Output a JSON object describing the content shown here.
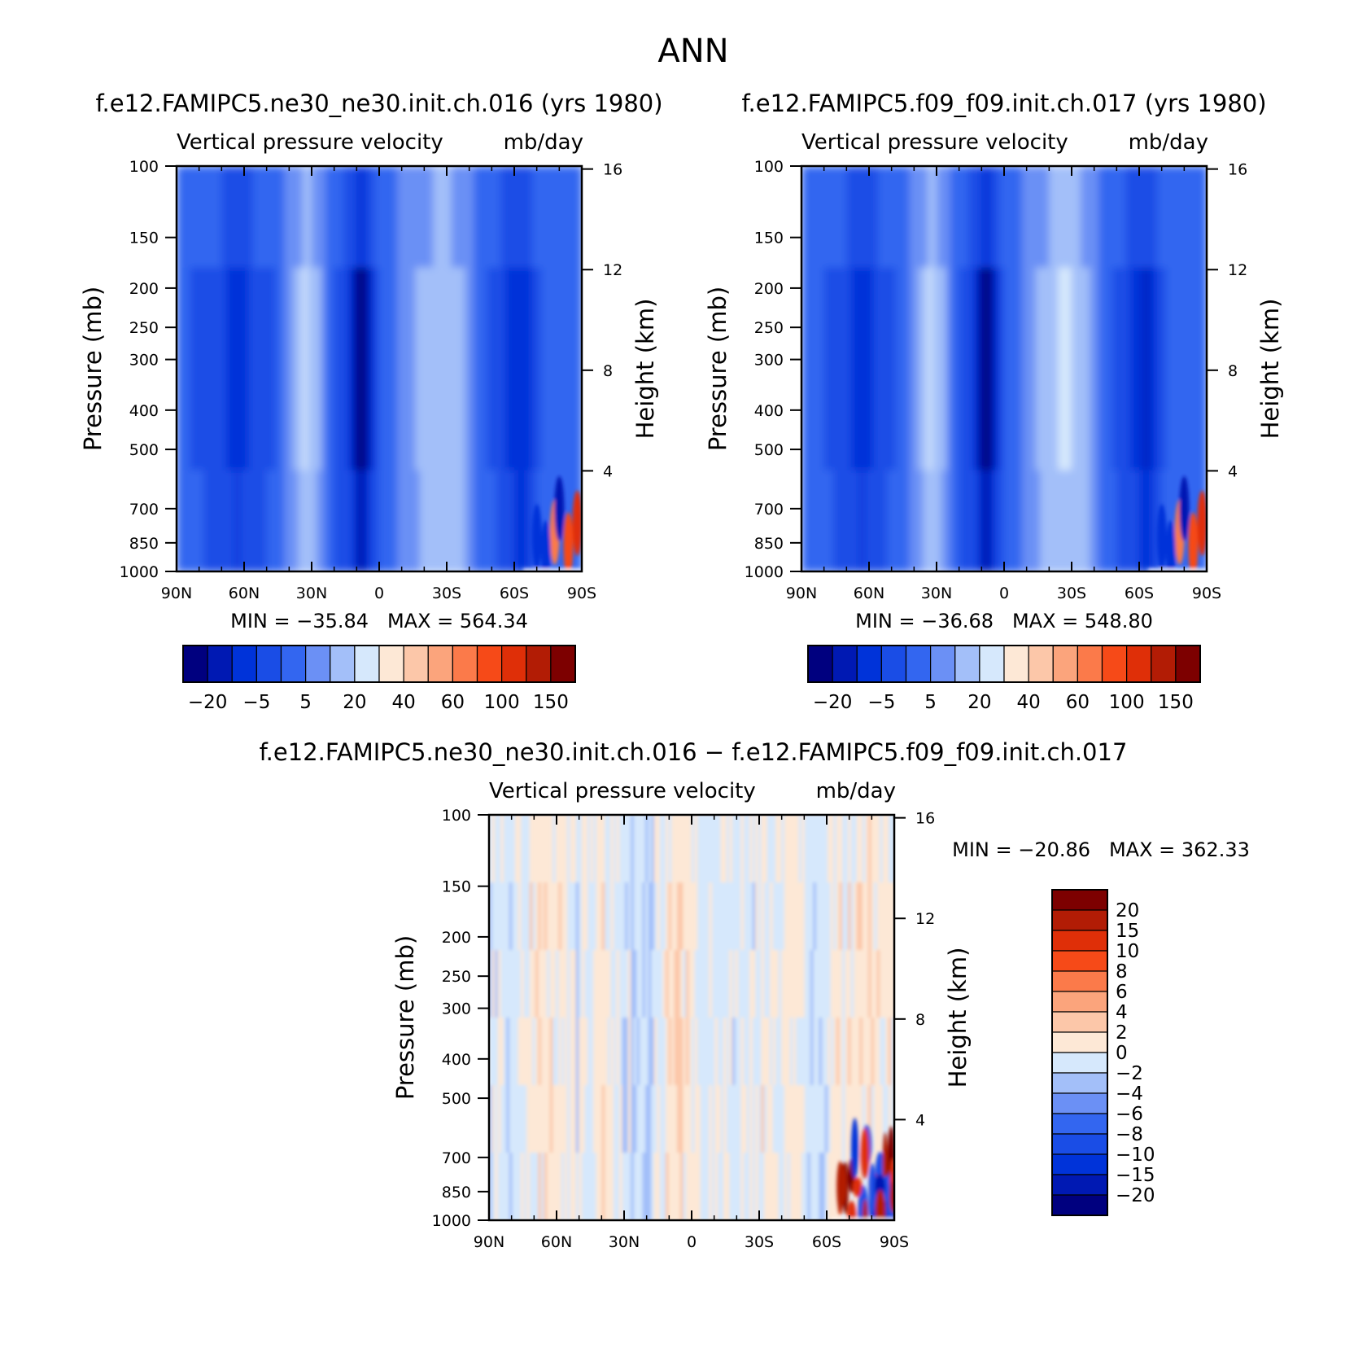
{
  "figure": {
    "title": "ANN"
  },
  "colors": {
    "abs_levels": [
      "#00007f",
      "#0019b3",
      "#0033d9",
      "#1a4de6",
      "#3366f0",
      "#6b90f5",
      "#a3bff9",
      "#d6e8fc",
      "#fde8d6",
      "#fcc7a9",
      "#fba47c",
      "#fb7a4a",
      "#f64a18",
      "#df2f08",
      "#b21c05",
      "#7d0000"
    ],
    "diff_levels": [
      "#00007f",
      "#0019b3",
      "#0033d9",
      "#1a4de6",
      "#3366f0",
      "#6b90f5",
      "#a3bff9",
      "#d6e8fc",
      "#fde8d6",
      "#fcc7a9",
      "#fba47c",
      "#fb7a4a",
      "#f64a18",
      "#df2f08",
      "#b21c05",
      "#7d0000"
    ]
  },
  "chart_data": [
    {
      "type": "heatmap",
      "title": "f.e12.FAMIPC5.ne30_ne30.init.ch.016 (yrs 1980)",
      "subtitle_left": "Vertical pressure velocity",
      "subtitle_right": "mb/day",
      "ylabel": "Pressure (mb)",
      "y2label": "Height (km)",
      "x_ticks": [
        "90N",
        "60N",
        "30N",
        "0",
        "30S",
        "60S",
        "90S"
      ],
      "y_ticks": [
        "100",
        "150",
        "200",
        "250",
        "300",
        "400",
        "500",
        "700",
        "850",
        "1000"
      ],
      "y2_ticks": [
        "16",
        "12",
        "8",
        "4"
      ],
      "xlim": [
        90,
        -90
      ],
      "ylim": [
        1000,
        100
      ],
      "stats": "MIN = −35.84   MAX = 564.34",
      "colorbar_labels": [
        "−20",
        "−5",
        "5",
        "20",
        "40",
        "60",
        "100",
        "150"
      ],
      "profile": [
        [
          90,
          -4
        ],
        [
          80,
          -6
        ],
        [
          70,
          -9
        ],
        [
          62,
          -14
        ],
        [
          55,
          -8
        ],
        [
          45,
          -5
        ],
        [
          38,
          4
        ],
        [
          33,
          10
        ],
        [
          28,
          8
        ],
        [
          20,
          -6
        ],
        [
          12,
          -12
        ],
        [
          8,
          -28
        ],
        [
          4,
          -14
        ],
        [
          0,
          -5
        ],
        [
          -5,
          -2
        ],
        [
          -12,
          3
        ],
        [
          -20,
          8
        ],
        [
          -28,
          10
        ],
        [
          -36,
          8
        ],
        [
          -44,
          -2
        ],
        [
          -52,
          -7
        ],
        [
          -58,
          -12
        ],
        [
          -64,
          -15
        ],
        [
          -70,
          -6
        ],
        [
          -76,
          -2
        ],
        [
          -82,
          0
        ],
        [
          -86,
          -3
        ],
        [
          -90,
          -5
        ]
      ]
    },
    {
      "type": "heatmap",
      "title": "f.e12.FAMIPC5.f09_f09.init.ch.017 (yrs 1980)",
      "subtitle_left": "Vertical pressure velocity",
      "subtitle_right": "mb/day",
      "ylabel": "Pressure (mb)",
      "y2label": "Height (km)",
      "x_ticks": [
        "90N",
        "60N",
        "30N",
        "0",
        "30S",
        "60S",
        "90S"
      ],
      "y_ticks": [
        "100",
        "150",
        "200",
        "250",
        "300",
        "400",
        "500",
        "700",
        "850",
        "1000"
      ],
      "y2_ticks": [
        "16",
        "12",
        "8",
        "4"
      ],
      "xlim": [
        90,
        -90
      ],
      "ylim": [
        1000,
        100
      ],
      "stats": "MIN = −36.68   MAX = 548.80",
      "colorbar_labels": [
        "−20",
        "−5",
        "5",
        "20",
        "40",
        "60",
        "100",
        "150"
      ],
      "profile": [
        [
          90,
          -4
        ],
        [
          80,
          -5
        ],
        [
          70,
          -9
        ],
        [
          62,
          -14
        ],
        [
          55,
          -8
        ],
        [
          45,
          -4
        ],
        [
          38,
          5
        ],
        [
          33,
          11
        ],
        [
          28,
          8
        ],
        [
          20,
          -6
        ],
        [
          12,
          -12
        ],
        [
          8,
          -30
        ],
        [
          4,
          -14
        ],
        [
          0,
          -5
        ],
        [
          -5,
          -2
        ],
        [
          -12,
          4
        ],
        [
          -20,
          9
        ],
        [
          -28,
          11
        ],
        [
          -36,
          8
        ],
        [
          -44,
          -2
        ],
        [
          -52,
          -8
        ],
        [
          -58,
          -12
        ],
        [
          -64,
          -16
        ],
        [
          -70,
          -6
        ],
        [
          -76,
          -2
        ],
        [
          -82,
          0
        ],
        [
          -86,
          -3
        ],
        [
          -90,
          -5
        ]
      ]
    },
    {
      "type": "heatmap",
      "title": "f.e12.FAMIPC5.ne30_ne30.init.ch.016 − f.e12.FAMIPC5.f09_f09.init.ch.017",
      "subtitle_left": "Vertical pressure velocity",
      "subtitle_right": "mb/day",
      "ylabel": "Pressure (mb)",
      "y2label": "Height (km)",
      "x_ticks": [
        "90N",
        "60N",
        "30N",
        "0",
        "30S",
        "60S",
        "90S"
      ],
      "y_ticks": [
        "100",
        "150",
        "200",
        "250",
        "300",
        "400",
        "500",
        "700",
        "850",
        "1000"
      ],
      "y2_ticks": [
        "16",
        "12",
        "8",
        "4"
      ],
      "xlim": [
        90,
        -90
      ],
      "ylim": [
        1000,
        100
      ],
      "stats": "MIN = −20.86   MAX = 362.33",
      "colorbar_labels": [
        "20",
        "15",
        "10",
        "8",
        "6",
        "4",
        "2",
        "0",
        "−2",
        "−4",
        "−6",
        "−8",
        "−10",
        "−15",
        "−20"
      ],
      "profile": [
        [
          90,
          -1
        ],
        [
          80,
          -1
        ],
        [
          72,
          0.5
        ],
        [
          65,
          1
        ],
        [
          55,
          0.5
        ],
        [
          48,
          -0.5
        ],
        [
          40,
          0.5
        ],
        [
          30,
          -1
        ],
        [
          22,
          -2.5
        ],
        [
          15,
          -0.5
        ],
        [
          8,
          1.5
        ],
        [
          2,
          1
        ],
        [
          -5,
          -0.5
        ],
        [
          -15,
          -1
        ],
        [
          -25,
          -0.5
        ],
        [
          -35,
          0.5
        ],
        [
          -45,
          0.5
        ],
        [
          -52,
          -1
        ],
        [
          -58,
          -1
        ],
        [
          -64,
          0.5
        ],
        [
          -70,
          1
        ],
        [
          -78,
          2
        ],
        [
          -84,
          1
        ],
        [
          -90,
          0.5
        ]
      ]
    }
  ]
}
